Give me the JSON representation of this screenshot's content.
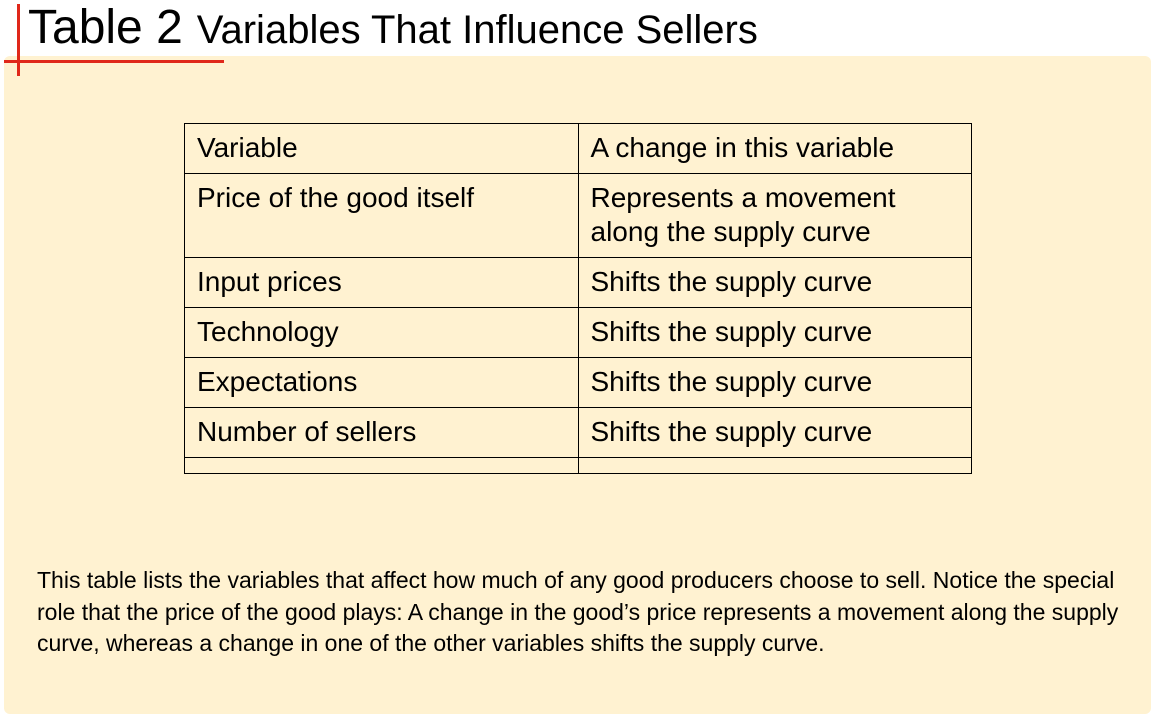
{
  "title": {
    "number": "Table 2",
    "text": "Variables That Influence Sellers"
  },
  "colors": {
    "panel_background": "#fff2d1",
    "accent": "#e0281a"
  },
  "table": {
    "header": [
      "Variable",
      "A change in this variable"
    ],
    "rows": [
      [
        "Price of the good itself",
        "Represents a movement along the supply curve"
      ],
      [
        "Input prices",
        "Shifts the supply curve"
      ],
      [
        "Technology",
        "Shifts the supply curve"
      ],
      [
        "Expectations",
        "Shifts the supply curve"
      ],
      [
        "Number of sellers",
        "Shifts the supply curve"
      ]
    ]
  },
  "caption": "This table lists the variables that affect how much of any good producers choose to sell. Notice the special role that the price of the good plays: A change in the good’s price represents a movement along the supply curve, whereas a change in one of the other variables shifts the supply curve."
}
